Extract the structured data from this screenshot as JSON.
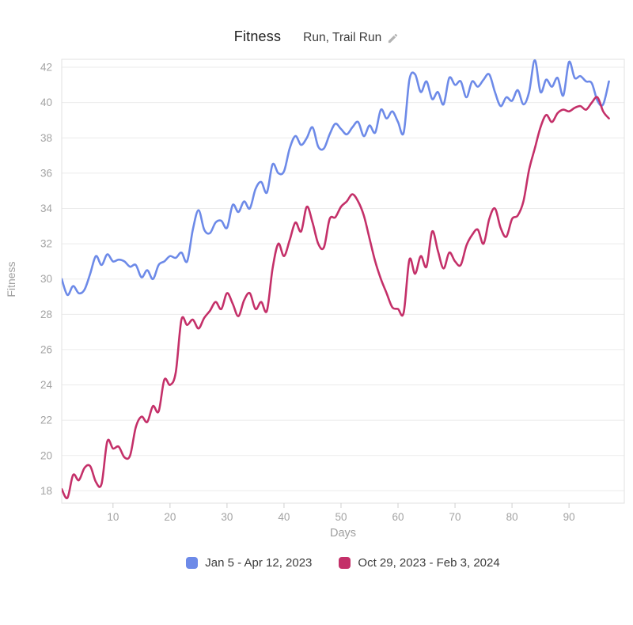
{
  "header": {
    "title": "Fitness",
    "subtitle": "Run, Trail Run"
  },
  "chart_data": {
    "type": "line",
    "title": "Fitness",
    "subtitle": "Run, Trail Run",
    "xlabel": "Days",
    "ylabel": "Fitness",
    "x_start": 1,
    "x_step": 1,
    "xlim": [
      1,
      99.7
    ],
    "ylim": [
      17.3,
      42.45
    ],
    "x_ticks": [
      10,
      20,
      30,
      40,
      50,
      60,
      70,
      80,
      90
    ],
    "y_ticks": [
      18,
      20,
      22,
      24,
      26,
      28,
      30,
      32,
      34,
      36,
      38,
      40,
      42
    ],
    "grid": "horizontal-only",
    "legend_position": "bottom",
    "series": [
      {
        "name": "Jan 5 - Apr 12, 2023",
        "color": "#6d8ae8",
        "values": [
          30.0,
          29.1,
          29.6,
          29.2,
          29.4,
          30.3,
          31.3,
          30.8,
          31.4,
          31.0,
          31.1,
          31.0,
          30.7,
          30.8,
          30.1,
          30.5,
          30.0,
          30.8,
          31.0,
          31.3,
          31.2,
          31.5,
          31.0,
          32.8,
          33.9,
          32.8,
          32.6,
          33.2,
          33.3,
          32.9,
          34.2,
          33.8,
          34.4,
          34.0,
          35.1,
          35.5,
          34.9,
          36.5,
          36.0,
          36.1,
          37.4,
          38.1,
          37.6,
          38.0,
          38.6,
          37.5,
          37.4,
          38.2,
          38.8,
          38.5,
          38.2,
          38.6,
          38.9,
          38.1,
          38.7,
          38.3,
          39.6,
          39.1,
          39.5,
          38.9,
          38.3,
          41.3,
          41.6,
          40.6,
          41.2,
          40.2,
          40.6,
          39.9,
          41.4,
          41.0,
          41.2,
          40.3,
          41.2,
          40.9,
          41.3,
          41.6,
          40.6,
          39.8,
          40.3,
          40.1,
          40.7,
          39.9,
          40.6,
          42.4,
          40.6,
          41.3,
          40.9,
          41.4,
          40.4,
          42.3,
          41.4,
          41.5,
          41.2,
          41.1,
          40.1,
          39.9,
          41.2
        ]
      },
      {
        "name": "Oct 29, 2023 - Feb 3, 2024",
        "color": "#c43069",
        "values": [
          18.1,
          17.6,
          18.9,
          18.6,
          19.3,
          19.4,
          18.5,
          18.4,
          20.8,
          20.4,
          20.5,
          19.9,
          20.0,
          21.6,
          22.2,
          21.9,
          22.8,
          22.5,
          24.3,
          24.0,
          24.7,
          27.7,
          27.4,
          27.7,
          27.2,
          27.8,
          28.2,
          28.7,
          28.3,
          29.2,
          28.6,
          27.9,
          28.8,
          29.2,
          28.3,
          28.7,
          28.2,
          30.6,
          32.0,
          31.3,
          32.2,
          33.2,
          32.7,
          34.1,
          33.2,
          32.0,
          31.8,
          33.4,
          33.5,
          34.1,
          34.4,
          34.8,
          34.4,
          33.6,
          32.3,
          31.0,
          30.0,
          29.2,
          28.4,
          28.3,
          28.1,
          31.1,
          30.3,
          31.3,
          30.7,
          32.7,
          31.6,
          30.6,
          31.5,
          31.0,
          30.8,
          31.9,
          32.5,
          32.8,
          32.0,
          33.4,
          34.0,
          32.9,
          32.4,
          33.4,
          33.6,
          34.4,
          36.2,
          37.4,
          38.6,
          39.3,
          38.9,
          39.4,
          39.6,
          39.5,
          39.7,
          39.8,
          39.6,
          40.0,
          40.3,
          39.5,
          39.1
        ]
      }
    ]
  },
  "legend": {
    "items": [
      {
        "label": "Jan 5 - Apr 12, 2023",
        "color": "#6d8ae8"
      },
      {
        "label": "Oct 29, 2023 - Feb 3, 2024",
        "color": "#c43069"
      }
    ]
  },
  "icons": {
    "edit": "pencil-icon"
  },
  "colors": {
    "background": "#ffffff",
    "series_blue": "#6d8ae8",
    "series_pink": "#c43069",
    "gridline": "#ebebeb",
    "plot_border": "#e2e2e2",
    "tick_mark": "#cfcfcf",
    "tick_label": "#a3a3a3",
    "axis_title": "#9e9e9e",
    "title_text": "#1f1f1f",
    "subtitle_text": "#3c3c3c",
    "legend_text": "#3c3c3c",
    "pencil_icon": "#b3b3b3"
  }
}
